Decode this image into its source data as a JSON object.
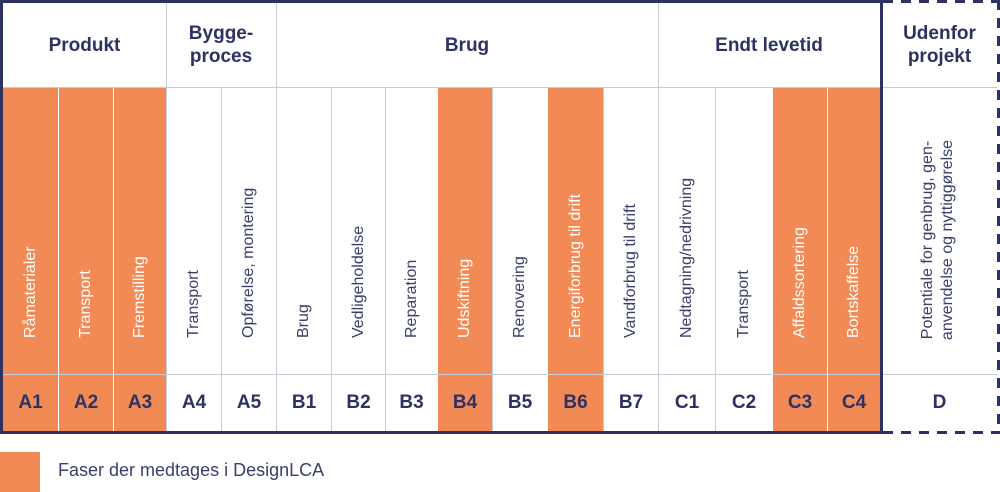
{
  "phases": [
    {
      "label": "Produkt"
    },
    {
      "label": "Bygge-\nproces"
    },
    {
      "label": "Brug"
    },
    {
      "label": "Endt levetid"
    },
    {
      "label": "Udenfor\nprojekt"
    }
  ],
  "modules": [
    {
      "code": "A1",
      "label": "Råmaterialer",
      "included": true
    },
    {
      "code": "A2",
      "label": "Transport",
      "included": true
    },
    {
      "code": "A3",
      "label": "Fremstilling",
      "included": true
    },
    {
      "code": "A4",
      "label": "Transport",
      "included": false
    },
    {
      "code": "A5",
      "label": "Opførelse, montering",
      "included": false
    },
    {
      "code": "B1",
      "label": "Brug",
      "included": false
    },
    {
      "code": "B2",
      "label": "Vedligeholdelse",
      "included": false
    },
    {
      "code": "B3",
      "label": "Reparation",
      "included": false
    },
    {
      "code": "B4",
      "label": "Udskiftning",
      "included": true
    },
    {
      "code": "B5",
      "label": "Renovering",
      "included": false
    },
    {
      "code": "B6",
      "label": "Energiforbrug til drift",
      "included": true
    },
    {
      "code": "B7",
      "label": "Vandforbrug til drift",
      "included": false
    },
    {
      "code": "C1",
      "label": "Nedtagning/nedrivning",
      "included": false
    },
    {
      "code": "C2",
      "label": "Transport",
      "included": false
    },
    {
      "code": "C3",
      "label": "Affaldssortering",
      "included": true
    },
    {
      "code": "C4",
      "label": "Bortskaffelse",
      "included": true
    }
  ],
  "outside": {
    "code": "D",
    "label": "Potentiale for genbrug, gen-\nanvendelse og nyttiggørelse"
  },
  "legend": {
    "label": "Faser der medtages i DesignLCA"
  },
  "colors": {
    "accent": "#f28a56",
    "frame": "#2d3263",
    "grid": "#c9cbd6"
  }
}
